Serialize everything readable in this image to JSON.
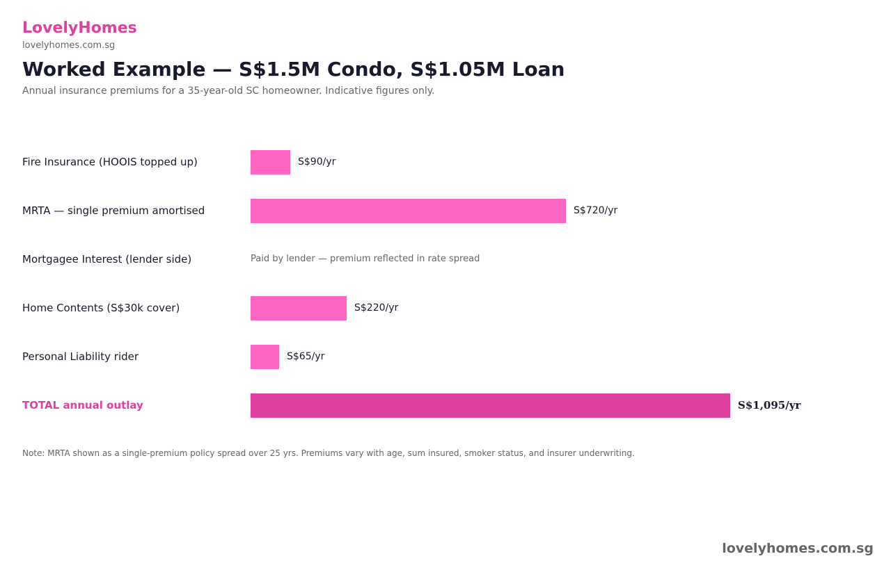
{
  "brand": {
    "name": "LovelyHomes",
    "domain": "lovelyhomes.com.sg",
    "color": "#e040a0"
  },
  "footer": {
    "domain": "lovelyhomes.com.sg"
  },
  "chart_data": {
    "type": "bar",
    "orientation": "horizontal",
    "title": "Worked Example — S$1.5M Condo, S$1.05M Loan",
    "subtitle": "Annual insurance premiums for a 35-year-old SC homeowner. Indicative figures only.",
    "unit": "S$/yr",
    "xlim": [
      0,
      1095
    ],
    "grid": false,
    "categories": [
      "Fire Insurance (HOOIS topped up)",
      "MRTA — single premium amortised",
      "Mortgagee Interest (lender side)",
      "Home Contents (S$30k cover)",
      "Personal Liability rider",
      "TOTAL annual outlay"
    ],
    "values": [
      90,
      720,
      null,
      220,
      65,
      1095
    ],
    "value_labels": [
      "S$90/yr",
      "S$720/yr",
      "",
      "S$220/yr",
      "S$65/yr",
      "S$1,095/yr"
    ],
    "notes": [
      "",
      "",
      "Paid by lender — premium reflected in rate spread",
      "",
      "",
      ""
    ],
    "highlight": [
      false,
      false,
      false,
      false,
      false,
      true
    ],
    "bar_color": "#ff66c4",
    "total_bar_color": "#e040a0",
    "total_label_color": "#e040a0",
    "footnote": "Note: MRTA shown as a single-premium policy spread over 25 yrs. Premiums vary with age, sum insured, smoker status, and insurer underwriting."
  }
}
